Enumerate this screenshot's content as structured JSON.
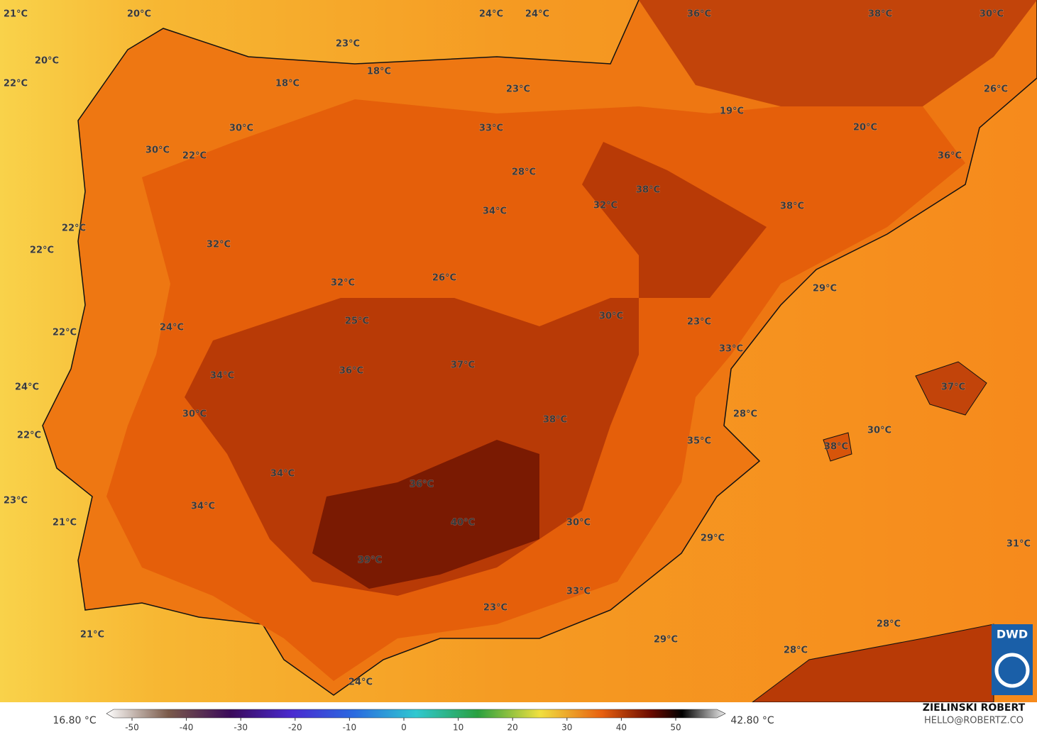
{
  "labels": [
    "21°C",
    "20°C",
    "24°C",
    "24°C",
    "36°C",
    "38°C",
    "30°C",
    "23°C",
    "20°C",
    "18°C",
    "22°C",
    "18°C",
    "23°C",
    "26°C",
    "19°C",
    "33°C",
    "30°C",
    "20°C",
    "30°C",
    "22°C",
    "36°C",
    "28°C",
    "38°C",
    "32°C",
    "38°C",
    "34°C",
    "22°C",
    "32°C",
    "22°C",
    "26°C",
    "32°C",
    "29°C",
    "30°C",
    "23°C",
    "25°C",
    "24°C",
    "22°C",
    "33°C",
    "37°C",
    "36°C",
    "34°C",
    "24°C",
    "37°C",
    "30°C",
    "28°C",
    "38°C",
    "30°C",
    "22°C",
    "35°C",
    "38°C",
    "34°C",
    "36°C",
    "34°C",
    "23°C",
    "21°C",
    "40°C",
    "30°C",
    "29°C",
    "31°C",
    "39°C",
    "33°C",
    "23°C",
    "28°C",
    "21°C",
    "29°C",
    "28°C",
    "24°C"
  ],
  "colorbar": {
    "min_label": "16.80 °C",
    "max_label": "42.80 °C",
    "ticks": [
      -50,
      -40,
      -30,
      -20,
      -10,
      0,
      10,
      20,
      30,
      40,
      50
    ]
  },
  "credit": {
    "author": "ZIELINSKI ROBERT",
    "contact": "HELLO@ROBERTZ.CO"
  },
  "logo": "DWD"
}
